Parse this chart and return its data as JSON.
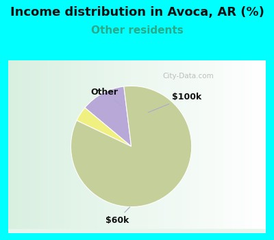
{
  "title": "Income distribution in Avoca, AR (%)",
  "subtitle": "Other residents",
  "title_color": "#111111",
  "subtitle_color": "#2aaa88",
  "outer_bg_color": "#00ffff",
  "chart_bg_top_left": "#e8f5ee",
  "chart_bg_color": "#dff0e8",
  "slices": [
    {
      "label": "$100k",
      "value": 12,
      "color": "#b8a8d8"
    },
    {
      "label": "Other",
      "value": 4,
      "color": "#f0f080"
    },
    {
      "label": "$60k",
      "value": 84,
      "color": "#c5cf9a"
    }
  ],
  "start_angle": 97,
  "watermark": "City-Data.com",
  "title_fontsize": 13,
  "subtitle_fontsize": 11,
  "annotation_fontsize": 9
}
